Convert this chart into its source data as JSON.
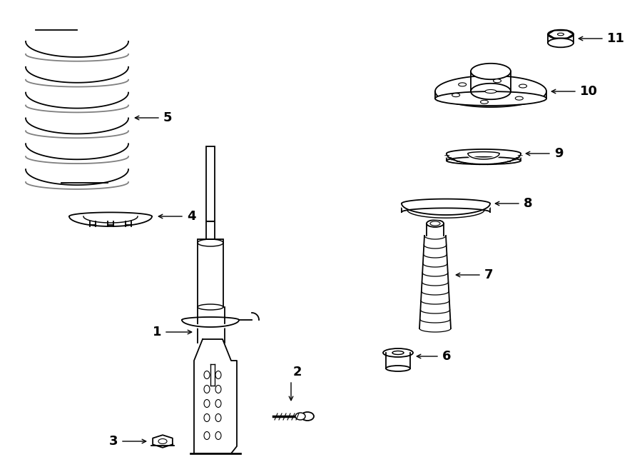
{
  "background_color": "#ffffff",
  "line_color": "#000000",
  "fig_width": 9.0,
  "fig_height": 6.61
}
